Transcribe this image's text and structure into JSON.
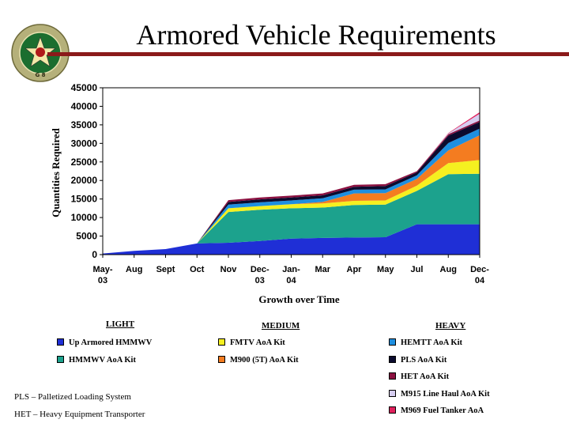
{
  "slide": {
    "title": "Armored Vehicle Requirements",
    "logo_text": "DEPUTY CHIEF OF STAFF G-8",
    "notes": [
      "PLS – Palletized Loading System",
      "HET – Heavy Equipment Transporter"
    ]
  },
  "legend": {
    "groups": [
      {
        "header": "LIGHT",
        "items": [
          {
            "label": "Up Armored HMMWV",
            "color": "#1f2fd6"
          },
          {
            "label": "HMMWV AoA Kit",
            "color": "#1ca28d"
          }
        ]
      },
      {
        "header": "MEDIUM",
        "items": [
          {
            "label": "FMTV AoA Kit",
            "color": "#f5f020"
          },
          {
            "label": "M900 (5T) AoA Kit",
            "color": "#f47c20"
          }
        ]
      },
      {
        "header": "HEAVY",
        "items": [
          {
            "label": "HEMTT AoA Kit",
            "color": "#1e8fe0"
          },
          {
            "label": "PLS AoA Kit",
            "color": "#0b0b2e"
          },
          {
            "label": "HET AoA Kit",
            "color": "#8b1040"
          },
          {
            "label": "M915 Line Haul AoA Kit",
            "color": "#d6cdf0"
          },
          {
            "label": "M969 Fuel Tanker AoA",
            "color": "#e0205c"
          }
        ]
      }
    ]
  },
  "chart_data": {
    "type": "area",
    "stacked": true,
    "title": "",
    "xlabel": "Growth over Time",
    "ylabel": "Quantities Required",
    "ylim": [
      0,
      45000
    ],
    "yticks": [
      0,
      5000,
      10000,
      15000,
      20000,
      25000,
      30000,
      35000,
      40000,
      45000
    ],
    "grid": false,
    "legend_position": "bottom",
    "categories": [
      "May-03",
      "Aug",
      "Sept",
      "Oct",
      "Nov",
      "Dec-03",
      "Jan-04",
      "Mar",
      "Apr",
      "May",
      "Jul",
      "Aug",
      "Dec-04"
    ],
    "series": [
      {
        "name": "Up Armored HMMWV",
        "values": [
          300,
          1000,
          1500,
          3000,
          3200,
          3700,
          4300,
          4500,
          4600,
          4700,
          8200,
          8200,
          8200
        ]
      },
      {
        "name": "HMMWV AoA Kit",
        "values": [
          0,
          0,
          0,
          0,
          8300,
          8400,
          8200,
          8200,
          8800,
          8800,
          9000,
          13500,
          13600
        ]
      },
      {
        "name": "FMTV AoA Kit",
        "values": [
          0,
          0,
          0,
          0,
          1000,
          1000,
          1100,
          1100,
          1100,
          1100,
          1400,
          3000,
          3700
        ]
      },
      {
        "name": "M900 (5T) AoA Kit",
        "values": [
          0,
          0,
          0,
          0,
          0,
          0,
          0,
          400,
          2000,
          2000,
          1800,
          3400,
          6700
        ]
      },
      {
        "name": "HEMTT AoA Kit",
        "values": [
          0,
          0,
          0,
          0,
          1000,
          1000,
          1000,
          1000,
          1000,
          1000,
          1000,
          2000,
          1800
        ]
      },
      {
        "name": "PLS AoA Kit",
        "values": [
          0,
          0,
          0,
          0,
          700,
          800,
          800,
          800,
          800,
          900,
          800,
          2000,
          1800
        ]
      },
      {
        "name": "HET AoA Kit",
        "values": [
          0,
          0,
          0,
          0,
          500,
          500,
          500,
          500,
          500,
          500,
          300,
          400,
          400
        ]
      },
      {
        "name": "M915 Line Haul AoA Kit",
        "values": [
          0,
          0,
          0,
          0,
          0,
          0,
          0,
          0,
          0,
          0,
          0,
          200,
          1800
        ]
      },
      {
        "name": "M969 Fuel Tanker AoA",
        "values": [
          0,
          0,
          0,
          0,
          0,
          0,
          0,
          0,
          0,
          0,
          0,
          100,
          400
        ]
      }
    ]
  }
}
